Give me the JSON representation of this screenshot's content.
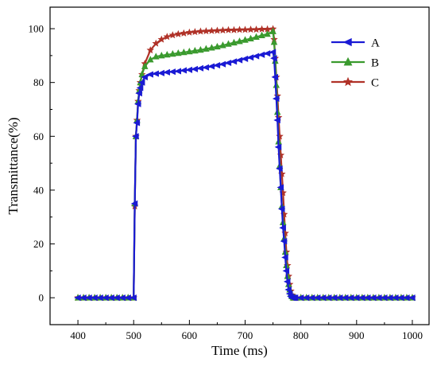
{
  "chart_data": {
    "type": "line",
    "title": "",
    "xlabel": "Time (ms)",
    "ylabel": "Transmittance(%)",
    "xlim": [
      350,
      1030
    ],
    "ylim": [
      -10,
      108
    ],
    "xticks": [
      400,
      500,
      600,
      700,
      800,
      900,
      1000
    ],
    "yticks": [
      0,
      20,
      40,
      60,
      80,
      100
    ],
    "grid": false,
    "legend_position": "top-right",
    "series": [
      {
        "name": "A",
        "color": "#1a1ad4",
        "marker": "triangle-left",
        "x": [
          400,
          410,
          420,
          430,
          440,
          450,
          460,
          470,
          480,
          490,
          500,
          502,
          504,
          506,
          508,
          510,
          512,
          515,
          520,
          530,
          540,
          550,
          560,
          570,
          580,
          590,
          600,
          610,
          620,
          630,
          640,
          650,
          660,
          670,
          680,
          690,
          700,
          710,
          720,
          730,
          740,
          750,
          752,
          754,
          756,
          758,
          760,
          762,
          764,
          766,
          768,
          770,
          772,
          774,
          776,
          778,
          780,
          782,
          784,
          786,
          788,
          790,
          800,
          810,
          820,
          830,
          840,
          850,
          860,
          870,
          880,
          890,
          900,
          910,
          920,
          930,
          940,
          950,
          960,
          970,
          980,
          990,
          1000
        ],
        "y": [
          0,
          0,
          0,
          0,
          0,
          0,
          0,
          0,
          0,
          0,
          0,
          35,
          60,
          65,
          72,
          76,
          78,
          80,
          82,
          83,
          83.3,
          83.5,
          83.8,
          84,
          84.2,
          84.5,
          84.7,
          85,
          85.3,
          85.6,
          86,
          86.4,
          86.8,
          87.3,
          87.8,
          88.3,
          88.8,
          89.3,
          89.8,
          90.3,
          90.8,
          91.3,
          89,
          82,
          74,
          66,
          56,
          48,
          41,
          33,
          26,
          21,
          15,
          10,
          6,
          3,
          1.5,
          0.5,
          0,
          0,
          0,
          0,
          0,
          0,
          0,
          0,
          0,
          0,
          0,
          0,
          0,
          0,
          0,
          0,
          0,
          0,
          0,
          0,
          0,
          0,
          0,
          0,
          0
        ]
      },
      {
        "name": "B",
        "color": "#3a9a2e",
        "marker": "triangle-up",
        "x": [
          400,
          410,
          420,
          430,
          440,
          450,
          460,
          470,
          480,
          490,
          500,
          502,
          504,
          506,
          508,
          510,
          512,
          515,
          520,
          530,
          540,
          550,
          560,
          570,
          580,
          590,
          600,
          610,
          620,
          630,
          640,
          650,
          660,
          670,
          680,
          690,
          700,
          710,
          720,
          730,
          740,
          750,
          752,
          754,
          756,
          758,
          760,
          762,
          764,
          766,
          768,
          770,
          772,
          774,
          776,
          778,
          780,
          782,
          784,
          786,
          788,
          790,
          800,
          810,
          820,
          830,
          840,
          850,
          860,
          870,
          880,
          890,
          900,
          910,
          920,
          930,
          940,
          950,
          960,
          970,
          980,
          990,
          1000
        ],
        "y": [
          0,
          0,
          0,
          0,
          0,
          0,
          0,
          0,
          0,
          0,
          0,
          35,
          60,
          66,
          73,
          77,
          80,
          83,
          86,
          88.5,
          89.6,
          90,
          90.3,
          90.6,
          90.9,
          91.2,
          91.5,
          91.8,
          92.1,
          92.5,
          92.9,
          93.3,
          93.8,
          94.3,
          94.8,
          95.3,
          95.8,
          96.3,
          96.9,
          97.5,
          98,
          99,
          95,
          88,
          79,
          69,
          58,
          49,
          41,
          34,
          28,
          22,
          17,
          12,
          8,
          5,
          3,
          1.5,
          0.5,
          0,
          0,
          0,
          0,
          0,
          0,
          0,
          0,
          0,
          0,
          0,
          0,
          0,
          0,
          0,
          0,
          0,
          0,
          0,
          0,
          0,
          0,
          0,
          0
        ]
      },
      {
        "name": "C",
        "color": "#b03228",
        "marker": "star",
        "x": [
          400,
          410,
          420,
          430,
          440,
          450,
          460,
          470,
          480,
          490,
          500,
          502,
          504,
          506,
          508,
          510,
          512,
          515,
          520,
          530,
          540,
          550,
          560,
          570,
          580,
          590,
          600,
          610,
          620,
          630,
          640,
          650,
          660,
          670,
          680,
          690,
          700,
          710,
          720,
          730,
          740,
          750,
          752,
          754,
          756,
          758,
          760,
          762,
          764,
          766,
          768,
          770,
          772,
          774,
          776,
          778,
          780,
          782,
          784,
          786,
          788,
          790,
          800,
          810,
          820,
          830,
          840,
          850,
          860,
          870,
          880,
          890,
          900,
          910,
          920,
          930,
          940,
          950,
          960,
          970,
          980,
          990,
          1000
        ],
        "y": [
          0,
          0,
          0,
          0,
          0,
          0,
          0,
          0,
          0,
          0,
          0,
          34,
          60,
          66,
          73,
          77,
          80,
          83,
          87,
          92,
          94.5,
          96,
          97,
          97.6,
          98,
          98.3,
          98.6,
          98.8,
          99,
          99.1,
          99.2,
          99.3,
          99.4,
          99.5,
          99.5,
          99.6,
          99.6,
          99.7,
          99.7,
          99.8,
          99.8,
          99.9,
          96,
          89,
          82,
          75,
          67,
          60,
          53,
          46,
          39,
          31,
          24,
          17,
          12,
          8,
          5,
          2.5,
          1,
          0,
          0,
          0,
          0,
          0,
          0,
          0,
          0,
          0,
          0,
          0,
          0,
          0,
          0,
          0,
          0,
          0,
          0,
          0,
          0,
          0,
          0,
          0,
          0
        ]
      }
    ]
  }
}
